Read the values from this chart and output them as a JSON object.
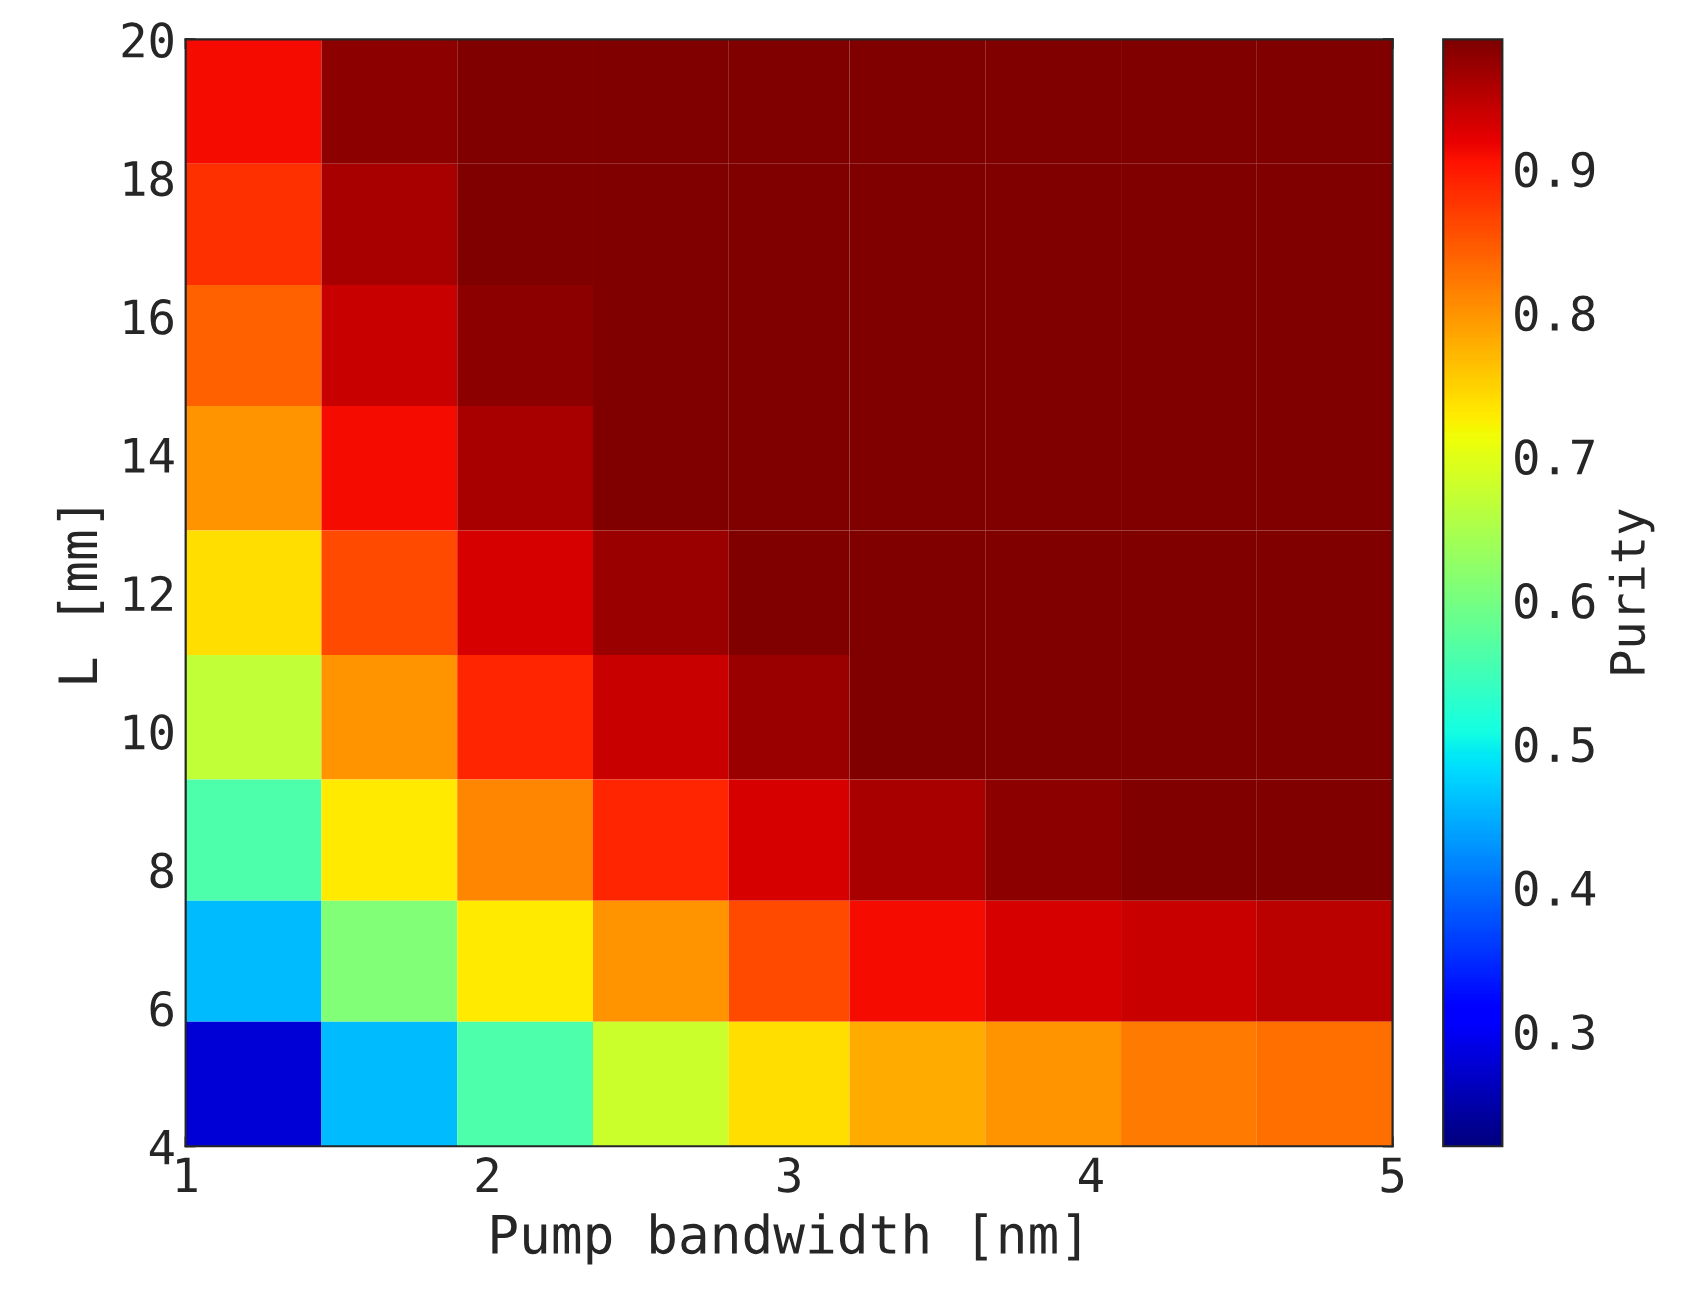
{
  "chart_data": {
    "type": "heatmap",
    "xlabel": "Pump bandwidth [nm]",
    "ylabel": "L [mm]",
    "clabel": "Purity",
    "x": [
      1.2,
      1.7,
      2.1,
      2.6,
      3.0,
      3.4,
      3.9,
      4.3,
      4.8
    ],
    "y": [
      19.1,
      17.3,
      15.6,
      13.8,
      12.0,
      10.2,
      8.4,
      6.7,
      4.9
    ],
    "cells": [
      [
        0.91,
        0.98,
        0.99,
        0.99,
        0.99,
        0.99,
        0.99,
        0.99,
        0.99
      ],
      [
        0.88,
        0.96,
        0.99,
        0.99,
        0.99,
        0.99,
        0.99,
        0.99,
        0.99
      ],
      [
        0.84,
        0.94,
        0.98,
        0.99,
        0.99,
        0.99,
        0.99,
        0.99,
        0.99
      ],
      [
        0.8,
        0.91,
        0.96,
        0.99,
        0.99,
        0.99,
        0.99,
        0.99,
        0.99
      ],
      [
        0.74,
        0.86,
        0.93,
        0.97,
        0.99,
        0.99,
        0.99,
        0.99,
        0.99
      ],
      [
        0.67,
        0.8,
        0.89,
        0.94,
        0.97,
        0.99,
        0.99,
        0.99,
        0.99
      ],
      [
        0.56,
        0.73,
        0.81,
        0.89,
        0.93,
        0.96,
        0.98,
        0.99,
        0.99
      ],
      [
        0.46,
        0.61,
        0.73,
        0.8,
        0.86,
        0.91,
        0.93,
        0.94,
        0.95
      ],
      [
        0.28,
        0.46,
        0.56,
        0.68,
        0.74,
        0.78,
        0.8,
        0.82,
        0.83
      ]
    ],
    "clim": [
      0.22,
      0.99
    ],
    "cticks": [
      0.3,
      0.4,
      0.5,
      0.6,
      0.7,
      0.8,
      0.9
    ],
    "xlim": [
      1,
      5
    ],
    "xticks": [
      1,
      2,
      3,
      4,
      5
    ],
    "ylim": [
      4,
      20
    ],
    "yticks": [
      4,
      6,
      8,
      10,
      12,
      14,
      16,
      18,
      20
    ],
    "grid": false
  }
}
